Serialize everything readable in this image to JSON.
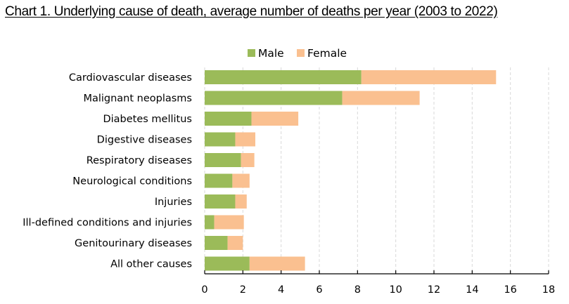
{
  "title": "Chart 1. Underlying cause of death, average number of deaths per year (2003 to 2022)",
  "chart_data": {
    "type": "bar",
    "orientation": "horizontal",
    "stacked": true,
    "title": "Chart 1. Underlying cause of death, average number of deaths per year (2003 to 2022)",
    "xlabel": "",
    "ylabel": "",
    "xlim": [
      0,
      18
    ],
    "xticks": [
      0,
      2,
      4,
      6,
      8,
      10,
      12,
      14,
      16,
      18
    ],
    "grid": "vertical dashed",
    "legend_position": "top-center",
    "categories": [
      "Cardiovascular diseases",
      "Malignant neoplasms",
      "Diabetes mellitus",
      "Digestive diseases",
      "Respiratory diseases",
      "Neurological conditions",
      "Injuries",
      "Ill-defined conditions and injuries",
      "Genitourinary diseases",
      "All other causes"
    ],
    "series": [
      {
        "name": "Male",
        "color": "#9bbb59",
        "values": [
          8.2,
          7.2,
          2.45,
          1.6,
          1.9,
          1.45,
          1.6,
          0.5,
          1.2,
          2.35
        ]
      },
      {
        "name": "Female",
        "color": "#fac090",
        "values": [
          7.05,
          4.05,
          2.45,
          1.05,
          0.7,
          0.9,
          0.6,
          1.55,
          0.8,
          2.9
        ]
      }
    ]
  }
}
